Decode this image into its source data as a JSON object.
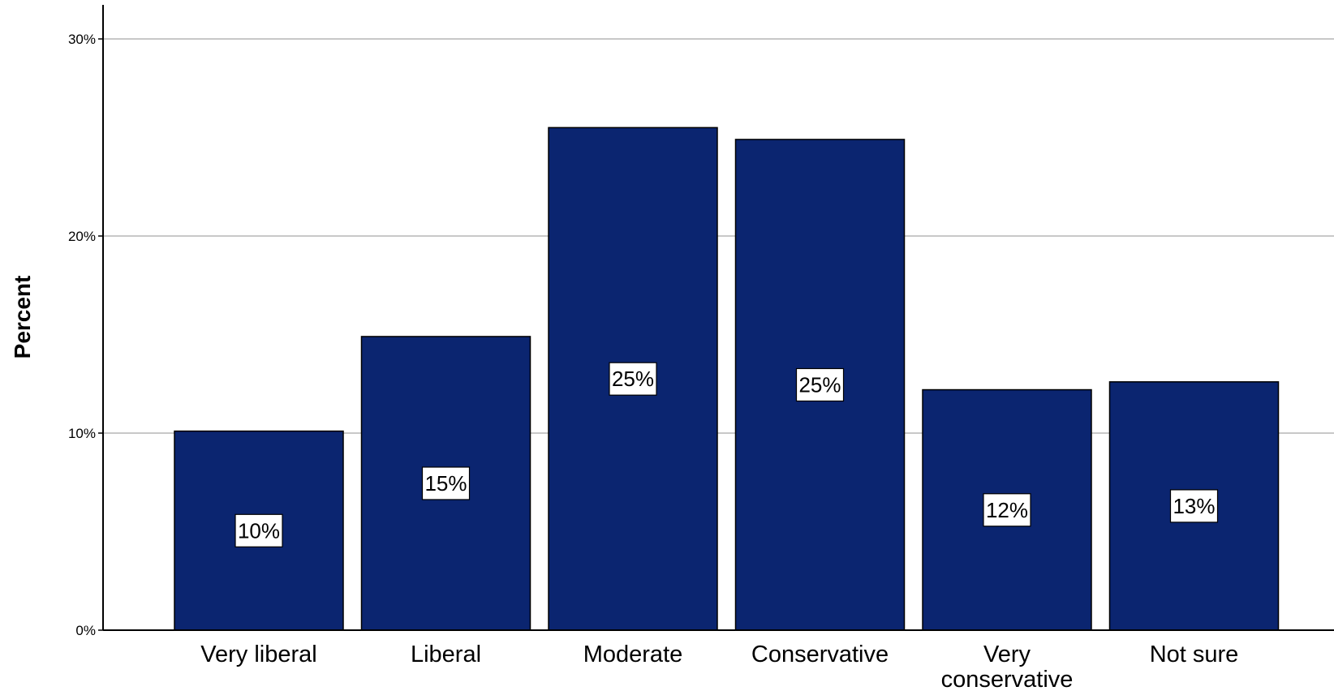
{
  "chart_data": {
    "type": "bar",
    "title": "",
    "xlabel": "",
    "ylabel": "Percent",
    "categories": [
      "Very liberal",
      "Liberal",
      "Moderate",
      "Conservative",
      "Very conservative",
      "Not sure"
    ],
    "values": [
      10.1,
      14.9,
      25.5,
      24.9,
      12.2,
      12.6
    ],
    "data_labels": [
      "10%",
      "15%",
      "25%",
      "25%",
      "12%",
      "13%"
    ],
    "ylim": [
      0,
      31.7
    ],
    "yticks": [
      0,
      10,
      20,
      30
    ],
    "ytick_labels": [
      "0%",
      "10%",
      "20%",
      "30%"
    ],
    "grid": true,
    "legend": "none",
    "bar_color": "#0b2570",
    "grid_color": "#b5b5b5"
  }
}
